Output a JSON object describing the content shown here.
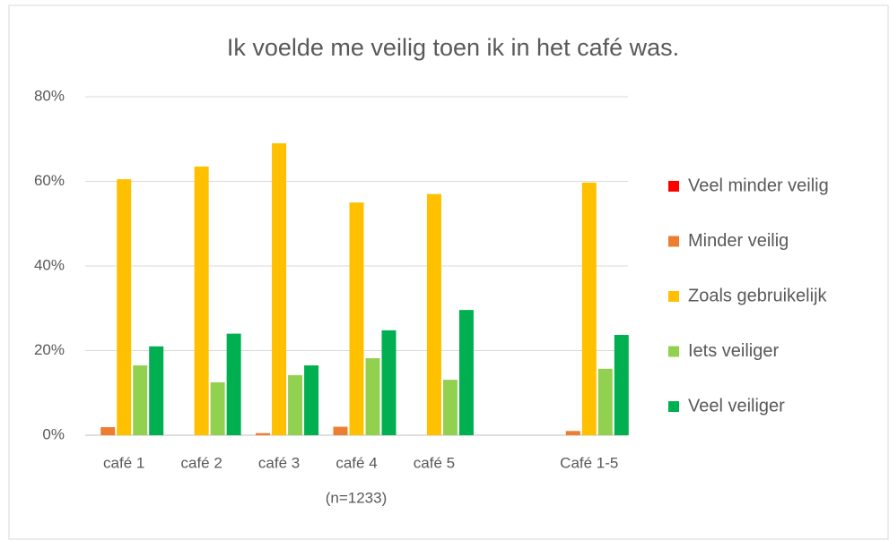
{
  "chart_data": {
    "type": "bar",
    "title": "Ik voelde me veilig toen ik in het café was.",
    "x_label": "(n=1233)",
    "categories": [
      "café 1",
      "café 2",
      "café 3",
      "café 4",
      "café 5",
      null,
      "Café 1-5"
    ],
    "series": [
      {
        "name": "Veel minder veilig",
        "color": "#ff0000",
        "values": [
          0,
          0,
          0,
          0,
          0,
          null,
          0
        ]
      },
      {
        "name": "Minder veilig",
        "color": "#ed7d31",
        "values": [
          1.9,
          0,
          0.5,
          2,
          0,
          null,
          1
        ]
      },
      {
        "name": "Zoals gebruikelijk",
        "color": "#ffc000",
        "values": [
          60.5,
          63.5,
          69,
          55,
          57,
          null,
          59.7
        ]
      },
      {
        "name": "Iets veiliger",
        "color": "#92d050",
        "values": [
          16.5,
          12.5,
          14.2,
          18.2,
          13.1,
          null,
          15.7
        ]
      },
      {
        "name": "Veel veiliger",
        "color": "#00b050",
        "values": [
          21,
          24,
          16.5,
          24.8,
          29.6,
          null,
          23.7
        ]
      }
    ],
    "ylim": [
      0,
      80
    ],
    "yticks": [
      {
        "value": 0,
        "label": "0%"
      },
      {
        "value": 20,
        "label": "20%"
      },
      {
        "value": 40,
        "label": "40%"
      },
      {
        "value": 60,
        "label": "60%"
      },
      {
        "value": 80,
        "label": "80%"
      }
    ],
    "grid": true,
    "legend": "right"
  }
}
